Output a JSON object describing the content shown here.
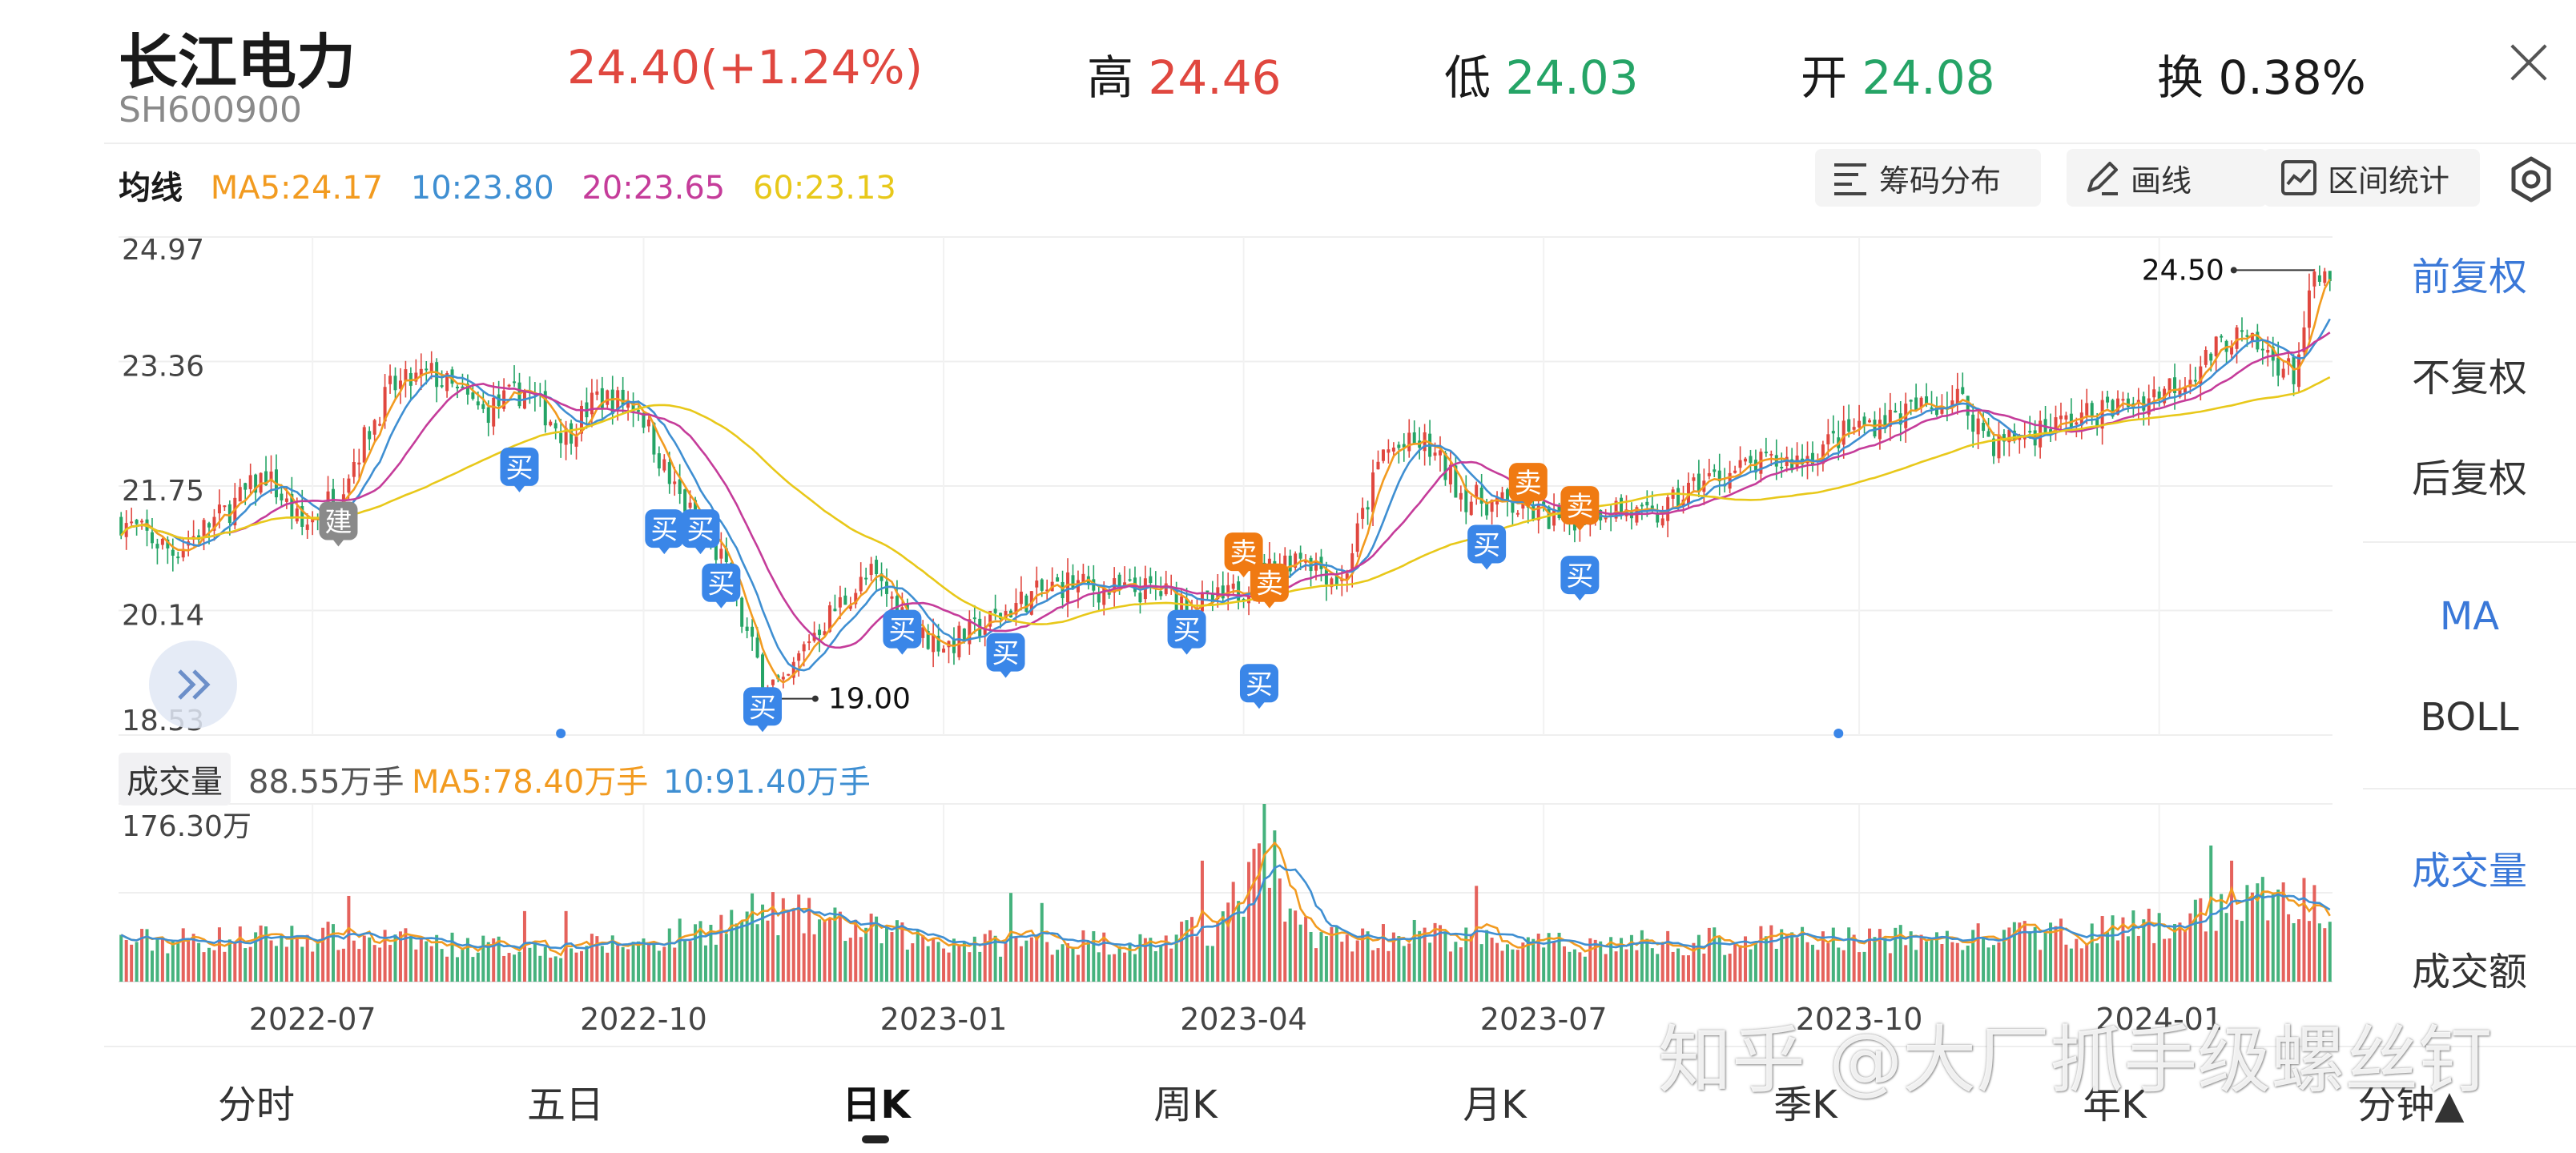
{
  "header": {
    "name": "长江电力",
    "code": "SH600900",
    "price": "24.40(+1.24%)",
    "high_label": "高",
    "high_value": "24.46",
    "low_label": "低",
    "low_value": "24.03",
    "open_label": "开",
    "open_value": "24.08",
    "turnover_label": "换",
    "turnover_value": "0.38%"
  },
  "ma_row": {
    "title": "均线",
    "ma5": "MA5:24.17",
    "ma10": "10:23.80",
    "ma20": "20:23.65",
    "ma60": "60:23.13"
  },
  "tools": {
    "chip": "筹码分布",
    "draw": "画线",
    "range": "区间统计"
  },
  "side_panel": {
    "adjust": [
      "前复权",
      "不复权",
      "后复权"
    ],
    "indicators": [
      "MA",
      "BOLL"
    ],
    "volume_opts": [
      "成交量",
      "成交额"
    ]
  },
  "volume_row": {
    "tag": "成交量",
    "current": "88.55万手",
    "ma5": "MA5:78.40万手",
    "ma10": "10:91.40万手"
  },
  "tabs": [
    "分时",
    "五日",
    "日K",
    "周K",
    "月K",
    "季K",
    "年K",
    "分钟▲"
  ],
  "active_tab": "日K",
  "watermark": "知乎 @大厂抓手级螺丝钉",
  "colors": {
    "up": "#e0473f",
    "down": "#25a466",
    "ma5": "#f29b20",
    "ma10": "#3f8fd2",
    "ma20": "#c53c9a",
    "ma60": "#e8c81a",
    "buy": "#3a86e8",
    "sell": "#f07a12",
    "build": "#8a8a8a",
    "active": "#3a78d8"
  },
  "chart_data": {
    "type": "candlestick",
    "price_axis": {
      "ticks": [
        "24.97",
        "23.36",
        "21.75",
        "20.14",
        "18.53"
      ],
      "min": 18.53,
      "max": 24.97
    },
    "volume_axis": {
      "max_label": "176.30万",
      "max": 176.3
    },
    "x_ticks": [
      "2022-07",
      "2022-10",
      "2023-01",
      "2023-04",
      "2023-07",
      "2023-10",
      "2024-01"
    ],
    "x_tick_index": [
      37,
      101,
      159,
      217,
      275,
      336,
      394
    ],
    "n_days": 428,
    "close_anchors": [
      [
        0,
        21.3
      ],
      [
        10,
        20.9
      ],
      [
        20,
        21.4
      ],
      [
        28,
        21.9
      ],
      [
        35,
        21.2
      ],
      [
        42,
        21.7
      ],
      [
        52,
        23.0
      ],
      [
        60,
        23.2
      ],
      [
        70,
        22.7
      ],
      [
        78,
        23.0
      ],
      [
        86,
        22.4
      ],
      [
        92,
        22.9
      ],
      [
        100,
        22.8
      ],
      [
        106,
        21.8
      ],
      [
        110,
        21.4
      ],
      [
        116,
        20.8
      ],
      [
        120,
        20.0
      ],
      [
        124,
        19.3
      ],
      [
        128,
        19.1
      ],
      [
        133,
        19.8
      ],
      [
        140,
        20.3
      ],
      [
        145,
        20.6
      ],
      [
        150,
        20.2
      ],
      [
        155,
        19.8
      ],
      [
        160,
        19.7
      ],
      [
        168,
        20.0
      ],
      [
        175,
        20.3
      ],
      [
        183,
        20.5
      ],
      [
        190,
        20.4
      ],
      [
        200,
        20.4
      ],
      [
        208,
        20.2
      ],
      [
        214,
        20.3
      ],
      [
        220,
        20.6
      ],
      [
        228,
        20.9
      ],
      [
        236,
        20.5
      ],
      [
        244,
        22.2
      ],
      [
        252,
        22.3
      ],
      [
        260,
        21.6
      ],
      [
        268,
        21.5
      ],
      [
        278,
        21.3
      ],
      [
        288,
        21.5
      ],
      [
        296,
        21.3
      ],
      [
        305,
        21.8
      ],
      [
        315,
        22.0
      ],
      [
        325,
        22.1
      ],
      [
        335,
        22.5
      ],
      [
        345,
        22.7
      ],
      [
        355,
        22.9
      ],
      [
        362,
        22.3
      ],
      [
        372,
        22.5
      ],
      [
        382,
        22.7
      ],
      [
        392,
        22.9
      ],
      [
        400,
        23.2
      ],
      [
        408,
        23.7
      ],
      [
        416,
        23.4
      ],
      [
        420,
        23.2
      ],
      [
        424,
        24.4
      ],
      [
        427,
        24.4
      ]
    ],
    "volume_anchors": [
      [
        0,
        40
      ],
      [
        20,
        42
      ],
      [
        40,
        45
      ],
      [
        60,
        38
      ],
      [
        80,
        33
      ],
      [
        100,
        38
      ],
      [
        115,
        55
      ],
      [
        125,
        70
      ],
      [
        140,
        55
      ],
      [
        155,
        42
      ],
      [
        170,
        38
      ],
      [
        185,
        40
      ],
      [
        200,
        38
      ],
      [
        212,
        55
      ],
      [
        220,
        110
      ],
      [
        226,
        60
      ],
      [
        236,
        42
      ],
      [
        250,
        48
      ],
      [
        262,
        40
      ],
      [
        275,
        36
      ],
      [
        290,
        38
      ],
      [
        305,
        40
      ],
      [
        320,
        42
      ],
      [
        335,
        42
      ],
      [
        350,
        42
      ],
      [
        365,
        45
      ],
      [
        380,
        50
      ],
      [
        395,
        55
      ],
      [
        405,
        70
      ],
      [
        415,
        82
      ],
      [
        427,
        78
      ]
    ],
    "volume_spikes": [
      [
        44,
        85
      ],
      [
        78,
        70
      ],
      [
        86,
        70
      ],
      [
        130,
        72
      ],
      [
        172,
        88
      ],
      [
        178,
        78
      ],
      [
        209,
        120
      ],
      [
        221,
        176.3
      ],
      [
        223,
        150
      ],
      [
        262,
        95
      ],
      [
        404,
        135
      ],
      [
        408,
        120
      ]
    ],
    "high_label": "24.50",
    "low_label": "19.00",
    "markers": [
      {
        "label": "建",
        "kind": "build",
        "i": 42,
        "price": 21.3
      },
      {
        "label": "买",
        "kind": "buy",
        "i": 77,
        "price": 22.0
      },
      {
        "label": "买",
        "kind": "buy",
        "i": 105,
        "price": 21.2
      },
      {
        "label": "买",
        "kind": "buy",
        "i": 112,
        "price": 21.2
      },
      {
        "label": "买",
        "kind": "buy",
        "i": 116,
        "price": 20.5
      },
      {
        "label": "买",
        "kind": "buy",
        "i": 124,
        "price": 18.9
      },
      {
        "label": "买",
        "kind": "buy",
        "i": 151,
        "price": 19.9
      },
      {
        "label": "买",
        "kind": "buy",
        "i": 171,
        "price": 19.6
      },
      {
        "label": "买",
        "kind": "buy",
        "i": 206,
        "price": 19.9
      },
      {
        "label": "卖",
        "kind": "sell",
        "i": 217,
        "price": 20.9
      },
      {
        "label": "卖",
        "kind": "sell",
        "i": 222,
        "price": 20.5
      },
      {
        "label": "买",
        "kind": "buy",
        "i": 220,
        "price": 19.2
      },
      {
        "label": "买",
        "kind": "buy",
        "i": 264,
        "price": 21.0
      },
      {
        "label": "卖",
        "kind": "sell",
        "i": 272,
        "price": 21.8
      },
      {
        "label": "卖",
        "kind": "sell",
        "i": 282,
        "price": 21.5
      },
      {
        "label": "买",
        "kind": "buy",
        "i": 282,
        "price": 20.6
      }
    ]
  }
}
